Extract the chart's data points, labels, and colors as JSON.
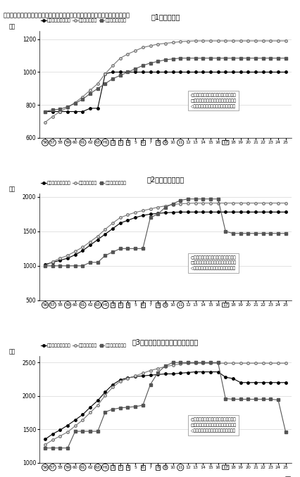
{
  "title": "図表７　世帯類型別所得割の非課税限度額、課税最低限と生活保護基準額の推移",
  "subtitles": [
    "（1）単身世帯",
    "（2）夫婦２人世帯",
    "（3）３人世帯（夫婦・子：４歳）"
  ],
  "ylabel": "千円",
  "xlabel_label": "年度",
  "x_labels": [
    "56",
    "57",
    "58",
    "59",
    "60",
    "61",
    "62",
    "63",
    "H1",
    "2",
    "3",
    "4",
    "5",
    "6",
    "7",
    "8",
    "9",
    "10",
    "11",
    "12",
    "13",
    "14",
    "15",
    "16",
    "17",
    "18",
    "19",
    "20",
    "21",
    "22",
    "23",
    "24",
    "25"
  ],
  "circled_indices": [
    0,
    1,
    3,
    5,
    7,
    8,
    9,
    10,
    11,
    13,
    16,
    18
  ],
  "squared_indices": [
    9,
    10,
    11,
    13,
    15
  ],
  "diamond_indices": [
    24
  ],
  "legend_items": [
    "所得割非課税限度額",
    "生活保護基準額",
    "所得割課税最低限"
  ],
  "note_items": [
    "○：非課税限度額引上げ年度（基本額）",
    "□：非課税限度額引上げ年度（加算額）",
    "◇：非課税限度額引下げ年度（加算額）"
  ],
  "panel1": {
    "ylim": [
      600,
      1250
    ],
    "yticks": [
      600,
      800,
      1000,
      1200
    ],
    "nk": [
      760,
      760,
      760,
      760,
      760,
      760,
      780,
      780,
      990,
      1000,
      1000,
      1000,
      1000,
      1000,
      1000,
      1000,
      1000,
      1000,
      1000,
      1000,
      1000,
      1000,
      1000,
      1000,
      1000,
      1000,
      1000,
      1000,
      1000,
      1000,
      1000,
      1000,
      1000
    ],
    "sk": [
      695,
      730,
      760,
      785,
      815,
      850,
      890,
      930,
      990,
      1040,
      1085,
      1110,
      1130,
      1150,
      1160,
      1170,
      1175,
      1180,
      1185,
      1188,
      1190,
      1190,
      1190,
      1190,
      1190,
      1190,
      1190,
      1190,
      1190,
      1190,
      1190,
      1190,
      1190
    ],
    "kz": [
      760,
      770,
      775,
      790,
      810,
      835,
      870,
      900,
      930,
      960,
      980,
      1000,
      1020,
      1040,
      1055,
      1065,
      1075,
      1080,
      1085,
      1085,
      1085,
      1085,
      1085,
      1085,
      1085,
      1085,
      1085,
      1085,
      1085,
      1085,
      1085,
      1085,
      1085
    ]
  },
  "panel2": {
    "ylim": [
      500,
      2050
    ],
    "yticks": [
      500,
      1000,
      1500,
      2000
    ],
    "nk": [
      1020,
      1050,
      1080,
      1110,
      1160,
      1220,
      1300,
      1380,
      1460,
      1540,
      1620,
      1660,
      1700,
      1730,
      1750,
      1760,
      1770,
      1775,
      1780,
      1780,
      1780,
      1780,
      1780,
      1780,
      1780,
      1780,
      1780,
      1780,
      1780,
      1780,
      1780,
      1780,
      1780
    ],
    "sk": [
      1000,
      1060,
      1110,
      1150,
      1210,
      1270,
      1350,
      1430,
      1530,
      1620,
      1700,
      1740,
      1775,
      1800,
      1825,
      1850,
      1870,
      1890,
      1900,
      1905,
      1910,
      1910,
      1910,
      1910,
      1910,
      1910,
      1910,
      1910,
      1910,
      1910,
      1910,
      1910,
      1910
    ],
    "kz": [
      1000,
      1000,
      1000,
      1000,
      1000,
      1000,
      1050,
      1050,
      1150,
      1200,
      1250,
      1250,
      1250,
      1250,
      1700,
      1750,
      1850,
      1900,
      1950,
      1970,
      1970,
      1970,
      1970,
      1970,
      1500,
      1470,
      1470,
      1470,
      1470,
      1470,
      1470,
      1470,
      1470
    ]
  },
  "panel3": {
    "ylim": [
      1000,
      2600
    ],
    "yticks": [
      1000,
      1500,
      2000,
      2500
    ],
    "nk": [
      1350,
      1430,
      1490,
      1560,
      1640,
      1720,
      1830,
      1930,
      2060,
      2170,
      2240,
      2270,
      2290,
      2300,
      2310,
      2320,
      2330,
      2330,
      2340,
      2350,
      2360,
      2360,
      2360,
      2360,
      2280,
      2260,
      2200,
      2200,
      2200,
      2200,
      2200,
      2200,
      2200
    ],
    "sk": [
      1270,
      1340,
      1400,
      1460,
      1550,
      1640,
      1750,
      1860,
      2010,
      2130,
      2220,
      2260,
      2300,
      2340,
      2380,
      2410,
      2440,
      2460,
      2480,
      2490,
      2490,
      2490,
      2490,
      2490,
      2490,
      2490,
      2490,
      2490,
      2490,
      2490,
      2490,
      2490,
      2490
    ],
    "kz": [
      1220,
      1220,
      1220,
      1220,
      1470,
      1470,
      1470,
      1470,
      1760,
      1800,
      1820,
      1830,
      1840,
      1860,
      2170,
      2350,
      2450,
      2500,
      2500,
      2500,
      2500,
      2500,
      2500,
      2500,
      1960,
      1950,
      1950,
      1950,
      1950,
      1950,
      1950,
      1940,
      1460
    ]
  }
}
